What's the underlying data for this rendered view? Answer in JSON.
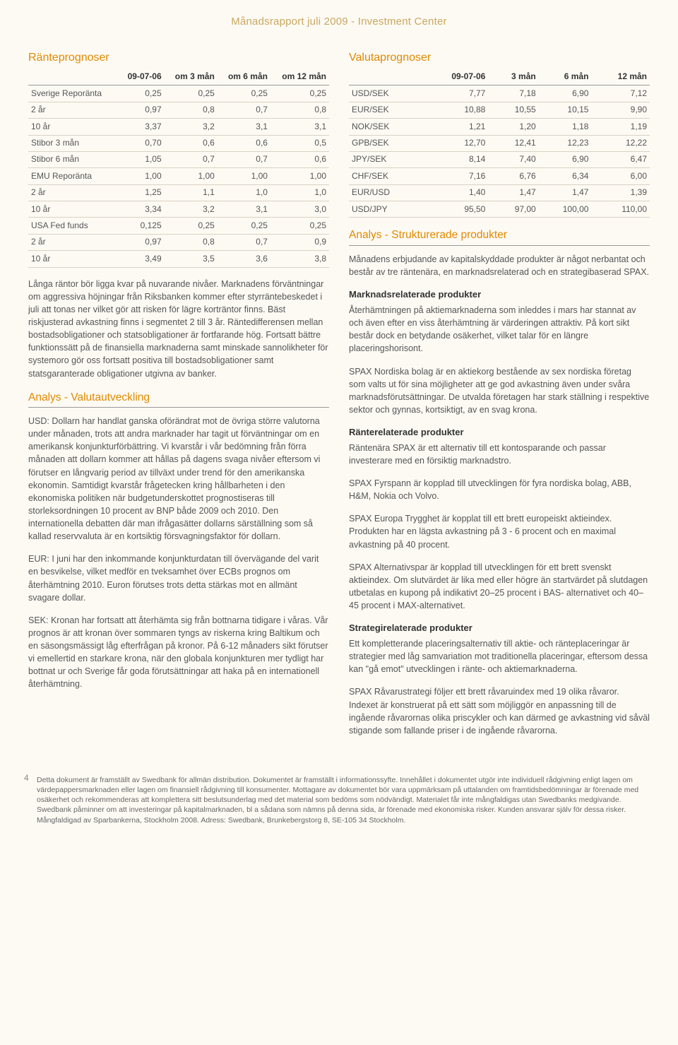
{
  "header": {
    "title": "Månadsrapport juli 2009 - Investment Center"
  },
  "colors": {
    "accent": "#e08a00",
    "header_accent": "#c9a860",
    "background": "#fdfaf4",
    "text": "#4a4a4a",
    "rule": "#999999",
    "row_rule": "#d8d2c4"
  },
  "left": {
    "rate_title": "Ränteprognoser",
    "rate_table": {
      "columns": [
        "",
        "09-07-06",
        "om 3 mån",
        "om 6 mån",
        "om 12 mån"
      ],
      "rows": [
        [
          "Sverige Reporänta",
          "0,25",
          "0,25",
          "0,25",
          "0,25"
        ],
        [
          "2 år",
          "0,97",
          "0,8",
          "0,7",
          "0,8"
        ],
        [
          "10 år",
          "3,37",
          "3,2",
          "3,1",
          "3,1"
        ],
        [
          "Stibor 3 mån",
          "0,70",
          "0,6",
          "0,6",
          "0,5"
        ],
        [
          "Stibor 6 mån",
          "1,05",
          "0,7",
          "0,7",
          "0,6"
        ],
        [
          "EMU Reporänta",
          "1,00",
          "1,00",
          "1,00",
          "1,00"
        ],
        [
          "2 år",
          "1,25",
          "1,1",
          "1,0",
          "1,0"
        ],
        [
          "10 år",
          "3,34",
          "3,2",
          "3,1",
          "3,0"
        ],
        [
          "USA Fed funds",
          "0,125",
          "0,25",
          "0,25",
          "0,25"
        ],
        [
          "2 år",
          "0,97",
          "0,8",
          "0,7",
          "0,9"
        ],
        [
          "10 år",
          "3,49",
          "3,5",
          "3,6",
          "3,8"
        ]
      ]
    },
    "rate_para": "Långa räntor bör ligga kvar på nuvarande nivåer. Marknadens förväntningar om aggressiva höjningar från Riksbanken kommer efter styrräntebeskedet i juli att tonas ner vilket gör att risken för lägre korträntor finns. Bäst riskjusterad avkastning finns i segmentet 2 till 3 år. Räntedifferensen mellan bostadsobligationer och statsobligationer är fortfarande hög. Fortsatt bättre funktionssätt på de finansiella marknaderna samt minskade sannolikheter för systemoro gör oss fortsatt positiva till bostadsobligationer samt statsgaranterade obligationer utgivna av banker.",
    "fx_title": "Analys - Valutautveckling",
    "fx_usd": "USD: Dollarn har handlat ganska oförändrat mot de övriga större valutorna under månaden, trots att andra marknader har tagit ut förväntningar om en amerikansk konjunkturförbättring. Vi kvarstår i vår bedömning från förra månaden att dollarn kommer att hållas på dagens svaga nivåer eftersom vi förutser en långvarig period av tillväxt under trend för den amerikanska ekonomin. Samtidigt kvarstår frågetecken kring hållbarheten i den ekonomiska politiken när budgetunderskottet prognostiseras till storleksordningen 10 procent av BNP både 2009 och 2010. Den internationella debatten där man ifrågasätter dollarns särställning som så kallad reservvaluta är en kortsiktig försvagningsfaktor för dollarn.",
    "fx_eur": "EUR: I juni har den inkommande konjunkturdatan till övervägande del varit en besvikelse, vilket medför en tveksamhet över ECBs prognos om återhämtning 2010. Euron förutses trots detta stärkas mot en allmänt svagare dollar.",
    "fx_sek": "SEK: Kronan har fortsatt att återhämta sig från bottnarna tidigare i våras. Vår prognos är att kronan över sommaren tyngs av riskerna kring Baltikum och en säsongsmässigt låg efterfrågan på kronor. På 6-12 månaders sikt förutser vi emellertid en starkare krona, när den globala konjunkturen mer tydligt har bottnat ur och Sverige får goda förutsättningar att haka på en internationell återhämtning."
  },
  "right": {
    "fx_title": "Valutaprognoser",
    "fx_table": {
      "columns": [
        "",
        "09-07-06",
        "3 mån",
        "6 mån",
        "12 mån"
      ],
      "rows": [
        [
          "USD/SEK",
          "7,77",
          "7,18",
          "6,90",
          "7,12"
        ],
        [
          "EUR/SEK",
          "10,88",
          "10,55",
          "10,15",
          "9,90"
        ],
        [
          "NOK/SEK",
          "1,21",
          "1,20",
          "1,18",
          "1,19"
        ],
        [
          "GPB/SEK",
          "12,70",
          "12,41",
          "12,23",
          "12,22"
        ],
        [
          "JPY/SEK",
          "8,14",
          "7,40",
          "6,90",
          "6,47"
        ],
        [
          "CHF/SEK",
          "7,16",
          "6,76",
          "6,34",
          "6,00"
        ],
        [
          "EUR/USD",
          "1,40",
          "1,47",
          "1,47",
          "1,39"
        ],
        [
          "USD/JPY",
          "95,50",
          "97,00",
          "100,00",
          "110,00"
        ]
      ]
    },
    "struct_title": "Analys - Strukturerade produkter",
    "struct_intro": "Månadens erbjudande av kapitalskyddade produkter är något nerbantat och består av tre räntenära, en marknadsrelaterad och en strategibaserad SPAX.",
    "mkt_head": "Marknadsrelaterade produkter",
    "mkt_p1": "Återhämtningen på aktiemarknaderna som inleddes i mars har stannat av och även efter en viss återhämtning är värderingen attraktiv. På kort sikt består dock en betydande osäkerhet, vilket talar för en längre placeringshorisont.",
    "mkt_p2": "SPAX Nordiska bolag är en aktiekorg bestående av sex nordiska företag som valts ut för sina möjligheter att ge god avkastning även under svåra marknadsförutsättningar. De utvalda företagen har stark ställning i respektive sektor och gynnas, kortsiktigt, av en svag krona.",
    "rate_head": "Ränterelaterade produkter",
    "rate_p1": "Räntenära SPAX är ett alternativ till ett kontosparande och passar investerare med en försiktig marknadstro.",
    "rate_p2": "SPAX Fyrspann är kopplad till utvecklingen för fyra nordiska bolag, ABB, H&M, Nokia och Volvo.",
    "rate_p3": "SPAX Europa Trygghet är kopplat till ett brett europeiskt aktieindex. Produkten har en lägsta avkastning på 3 - 6 procent och en maximal avkastning på 40 procent.",
    "rate_p4": "SPAX Alternativspar är kopplad till utvecklingen för ett brett svenskt aktieindex. Om slutvärdet är lika med eller högre än startvärdet på slutdagen utbetalas en kupong på indikativt 20–25 procent i BAS- alternativet och 40–45 procent i MAX-alternativet.",
    "strat_head": "Strategirelaterade produkter",
    "strat_p1": "Ett kompletterande placeringsalternativ till aktie- och ränteplaceringar är strategier med låg samvariation mot traditionella placeringar, eftersom dessa kan \"gå emot\" utvecklingen i ränte- och aktiemarknaderna.",
    "strat_p2": "SPAX Råvarustrategi följer ett brett råvaruindex med 19 olika råvaror. Indexet är konstruerat på ett sätt som möjliggör en anpassning till de ingående råvarornas olika priscykler och kan därmed ge avkastning vid såväl stigande som fallande priser i de ingående råvarorna."
  },
  "footer": {
    "page": "4",
    "text": "Detta dokument är framställt av Swedbank för allmän distribution. Dokumentet är framställt i informationssyfte. Innehållet i dokumentet utgör inte individuell rådgivning enligt lagen om värdepappersmarknaden eller lagen om finansiell rådgivning till konsumenter. Mottagare av dokumentet bör vara uppmärksam på uttalanden om framtidsbedömningar är förenade med osäkerhet och rekommenderas att komplettera sitt beslutsunderlag med det material som bedöms som nödvändigt. Materialet får inte mångfaldigas utan Swedbanks medgivande. Swedbank påminner om att investeringar på kapitalmarknaden, bl a sådana som nämns på denna sida, är förenade med ekonomiska risker. Kunden ansvarar själv för dessa risker. Mångfaldigad av Sparbankerna, Stockholm 2008. Adress: Swedbank, Brunkebergstorg 8, SE-105 34 Stockholm."
  }
}
